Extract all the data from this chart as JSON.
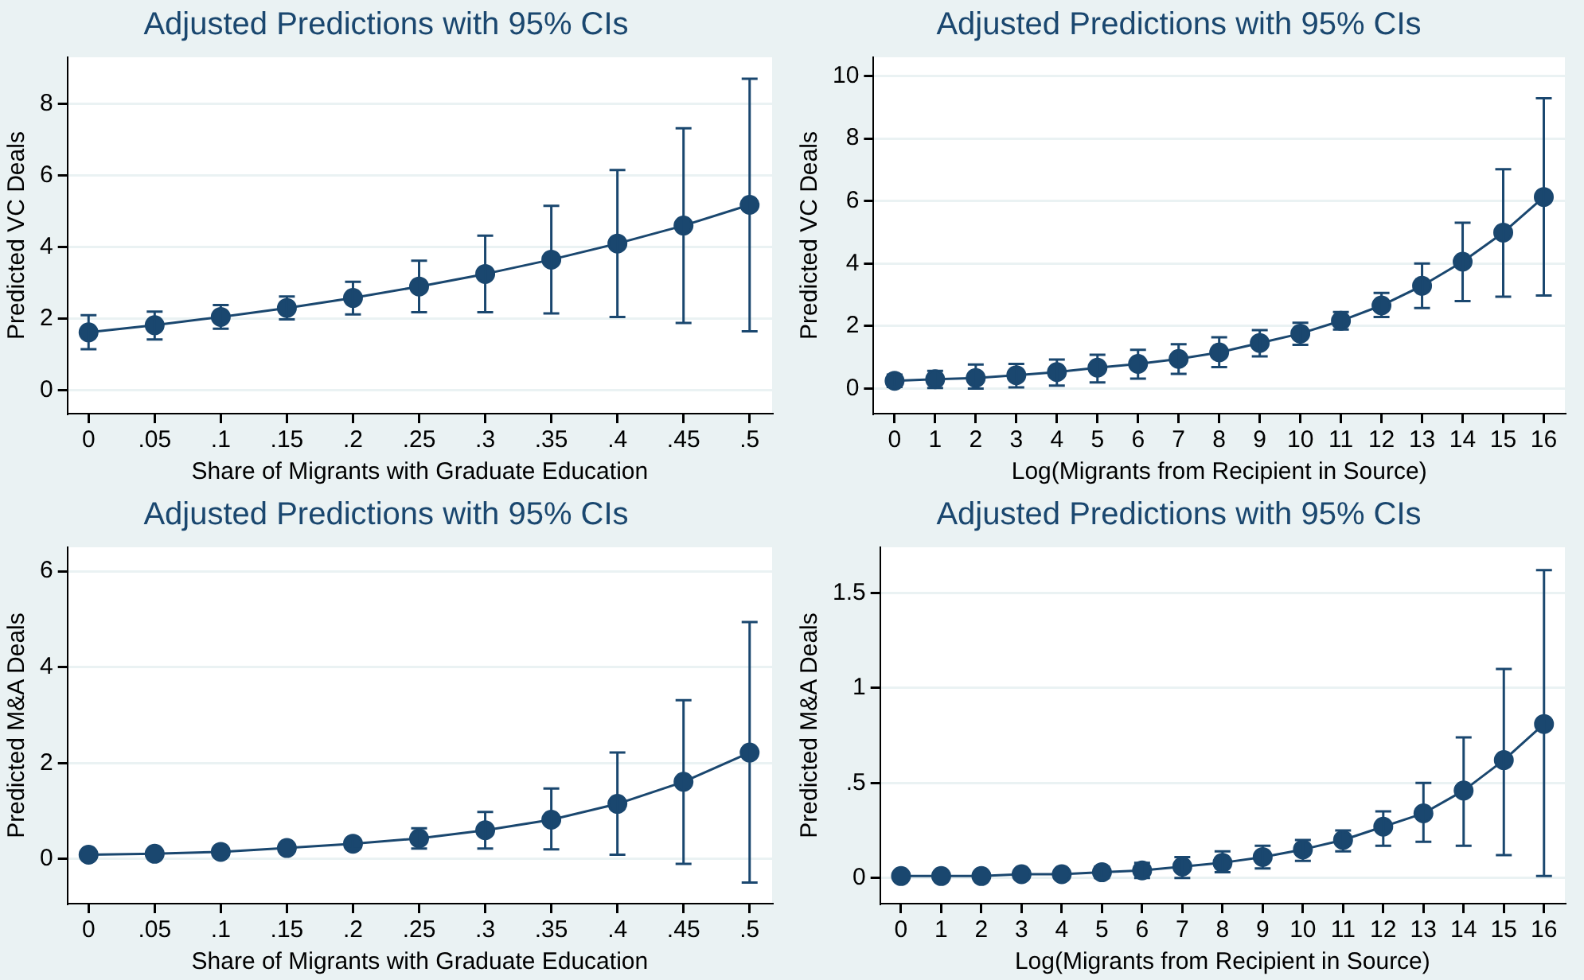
{
  "chart_data": [
    {
      "type": "line",
      "title": "Adjusted Predictions with 95% CIs",
      "xlabel": "Share of Migrants with Graduate Education",
      "ylabel": "Predicted VC Deals",
      "x": [
        0,
        0.05,
        0.1,
        0.15,
        0.2,
        0.25,
        0.3,
        0.35,
        0.4,
        0.45,
        0.5
      ],
      "xlim": [
        -0.016,
        0.517
      ],
      "xticks": [
        0,
        {
          "value": 0.05,
          "label": ".05"
        },
        {
          "value": 0.1,
          "label": ".1"
        },
        {
          "value": 0.15,
          "label": ".15"
        },
        {
          "value": 0.2,
          "label": ".2"
        },
        {
          "value": 0.25,
          "label": ".25"
        },
        {
          "value": 0.3,
          "label": ".3"
        },
        {
          "value": 0.35,
          "label": ".35"
        },
        {
          "value": 0.4,
          "label": ".4"
        },
        {
          "value": 0.45,
          "label": ".45"
        },
        {
          "value": 0.5,
          "label": ".5"
        }
      ],
      "ylim": [
        -0.65,
        9.3
      ],
      "yticks": [
        0,
        2,
        4,
        6,
        8
      ],
      "grid": "y",
      "marker": "circle",
      "series": [
        {
          "color": "#1a476f",
          "values": [
            1.62,
            1.82,
            2.05,
            2.3,
            2.58,
            2.9,
            3.25,
            3.65,
            4.1,
            4.6,
            5.18
          ],
          "errors": [
            [
              1.15,
              2.1
            ],
            [
              1.42,
              2.2
            ],
            [
              1.72,
              2.38
            ],
            [
              1.98,
              2.62
            ],
            [
              2.12,
              3.03
            ],
            [
              2.18,
              3.62
            ],
            [
              2.18,
              4.32
            ],
            [
              2.15,
              5.15
            ],
            [
              2.05,
              6.15
            ],
            [
              1.88,
              7.32
            ],
            [
              1.65,
              8.7
            ]
          ]
        }
      ]
    },
    {
      "type": "line",
      "title": "Adjusted Predictions with 95% CIs",
      "xlabel": "Log(Migrants from Recipient in Source)",
      "ylabel": "Predicted VC Deals",
      "x": [
        0,
        1,
        2,
        3,
        4,
        5,
        6,
        7,
        8,
        9,
        10,
        11,
        12,
        13,
        14,
        15,
        16
      ],
      "xlim": [
        -0.52,
        16.52
      ],
      "xticks": [
        0,
        1,
        2,
        3,
        4,
        5,
        6,
        7,
        8,
        9,
        10,
        11,
        12,
        13,
        14,
        15,
        16
      ],
      "ylim": [
        -0.8,
        10.6
      ],
      "yticks": [
        0,
        2,
        4,
        6,
        8,
        10
      ],
      "grid": "y",
      "marker": "circle",
      "series": [
        {
          "color": "#1a476f",
          "values": [
            0.25,
            0.3,
            0.34,
            0.43,
            0.53,
            0.67,
            0.79,
            0.95,
            1.16,
            1.46,
            1.76,
            2.17,
            2.66,
            3.29,
            4.06,
            4.99,
            6.13
          ],
          "errors": [
            [
              0.05,
              0.45
            ],
            [
              0.02,
              0.57
            ],
            [
              0.0,
              0.77
            ],
            [
              0.04,
              0.79
            ],
            [
              0.1,
              0.93
            ],
            [
              0.2,
              1.08
            ],
            [
              0.32,
              1.24
            ],
            [
              0.47,
              1.42
            ],
            [
              0.69,
              1.64
            ],
            [
              1.03,
              1.87
            ],
            [
              1.4,
              2.11
            ],
            [
              1.89,
              2.45
            ],
            [
              2.29,
              3.06
            ],
            [
              2.58,
              4.0
            ],
            [
              2.8,
              5.31
            ],
            [
              2.94,
              7.02
            ],
            [
              2.98,
              9.29
            ]
          ]
        }
      ]
    },
    {
      "type": "line",
      "title": "Adjusted Predictions with 95% CIs",
      "xlabel": "Share of Migrants with Graduate Education",
      "ylabel": "Predicted M&A Deals",
      "x": [
        0,
        0.05,
        0.1,
        0.15,
        0.2,
        0.25,
        0.3,
        0.35,
        0.4,
        0.45,
        0.5
      ],
      "xlim": [
        -0.016,
        0.517
      ],
      "xticks": [
        0,
        {
          "value": 0.05,
          "label": ".05"
        },
        {
          "value": 0.1,
          "label": ".1"
        },
        {
          "value": 0.15,
          "label": ".15"
        },
        {
          "value": 0.2,
          "label": ".2"
        },
        {
          "value": 0.25,
          "label": ".25"
        },
        {
          "value": 0.3,
          "label": ".3"
        },
        {
          "value": 0.35,
          "label": ".35"
        },
        {
          "value": 0.4,
          "label": ".4"
        },
        {
          "value": 0.45,
          "label": ".45"
        },
        {
          "value": 0.5,
          "label": ".5"
        }
      ],
      "ylim": [
        -0.93,
        6.5
      ],
      "yticks": [
        0,
        2,
        4,
        6
      ],
      "grid": "y",
      "marker": "circle",
      "series": [
        {
          "color": "#1a476f",
          "values": [
            0.09,
            0.11,
            0.15,
            0.23,
            0.32,
            0.43,
            0.6,
            0.82,
            1.15,
            1.61,
            2.22
          ],
          "errors": [
            null,
            null,
            null,
            null,
            [
              0.22,
              0.42
            ],
            [
              0.22,
              0.64
            ],
            [
              0.22,
              0.98
            ],
            [
              0.2,
              1.47
            ],
            [
              0.09,
              2.22
            ],
            [
              -0.1,
              3.31
            ],
            [
              -0.49,
              4.94
            ]
          ]
        }
      ]
    },
    {
      "type": "line",
      "title": "Adjusted Predictions with 95% CIs",
      "xlabel": "Log(Migrants from Recipient in Source)",
      "ylabel": "Predicted M&A Deals",
      "x": [
        0,
        1,
        2,
        3,
        4,
        5,
        6,
        7,
        8,
        9,
        10,
        11,
        12,
        13,
        14,
        15,
        16
      ],
      "xlim": [
        -0.52,
        16.52
      ],
      "xticks": [
        0,
        1,
        2,
        3,
        4,
        5,
        6,
        7,
        8,
        9,
        10,
        11,
        12,
        13,
        14,
        15,
        16
      ],
      "ylim": [
        -0.135,
        1.74
      ],
      "yticks": [
        0,
        {
          "value": 0.5,
          "label": ".5"
        },
        1,
        1.5
      ],
      "grid": "y",
      "marker": "circle",
      "series": [
        {
          "color": "#1a476f",
          "values": [
            0.01,
            0.01,
            0.01,
            0.02,
            0.02,
            0.03,
            0.04,
            0.06,
            0.08,
            0.11,
            0.15,
            0.2,
            0.27,
            0.34,
            0.46,
            0.62,
            0.81
          ],
          "errors": [
            null,
            null,
            null,
            null,
            null,
            [
              0.0,
              0.06
            ],
            [
              0.0,
              0.08
            ],
            [
              0.0,
              0.11
            ],
            [
              0.03,
              0.14
            ],
            [
              0.05,
              0.17
            ],
            [
              0.09,
              0.2
            ],
            [
              0.14,
              0.25
            ],
            [
              0.17,
              0.35
            ],
            [
              0.19,
              0.5
            ],
            [
              0.17,
              0.74
            ],
            [
              0.12,
              1.1
            ],
            [
              0.01,
              1.62
            ]
          ]
        }
      ]
    }
  ]
}
